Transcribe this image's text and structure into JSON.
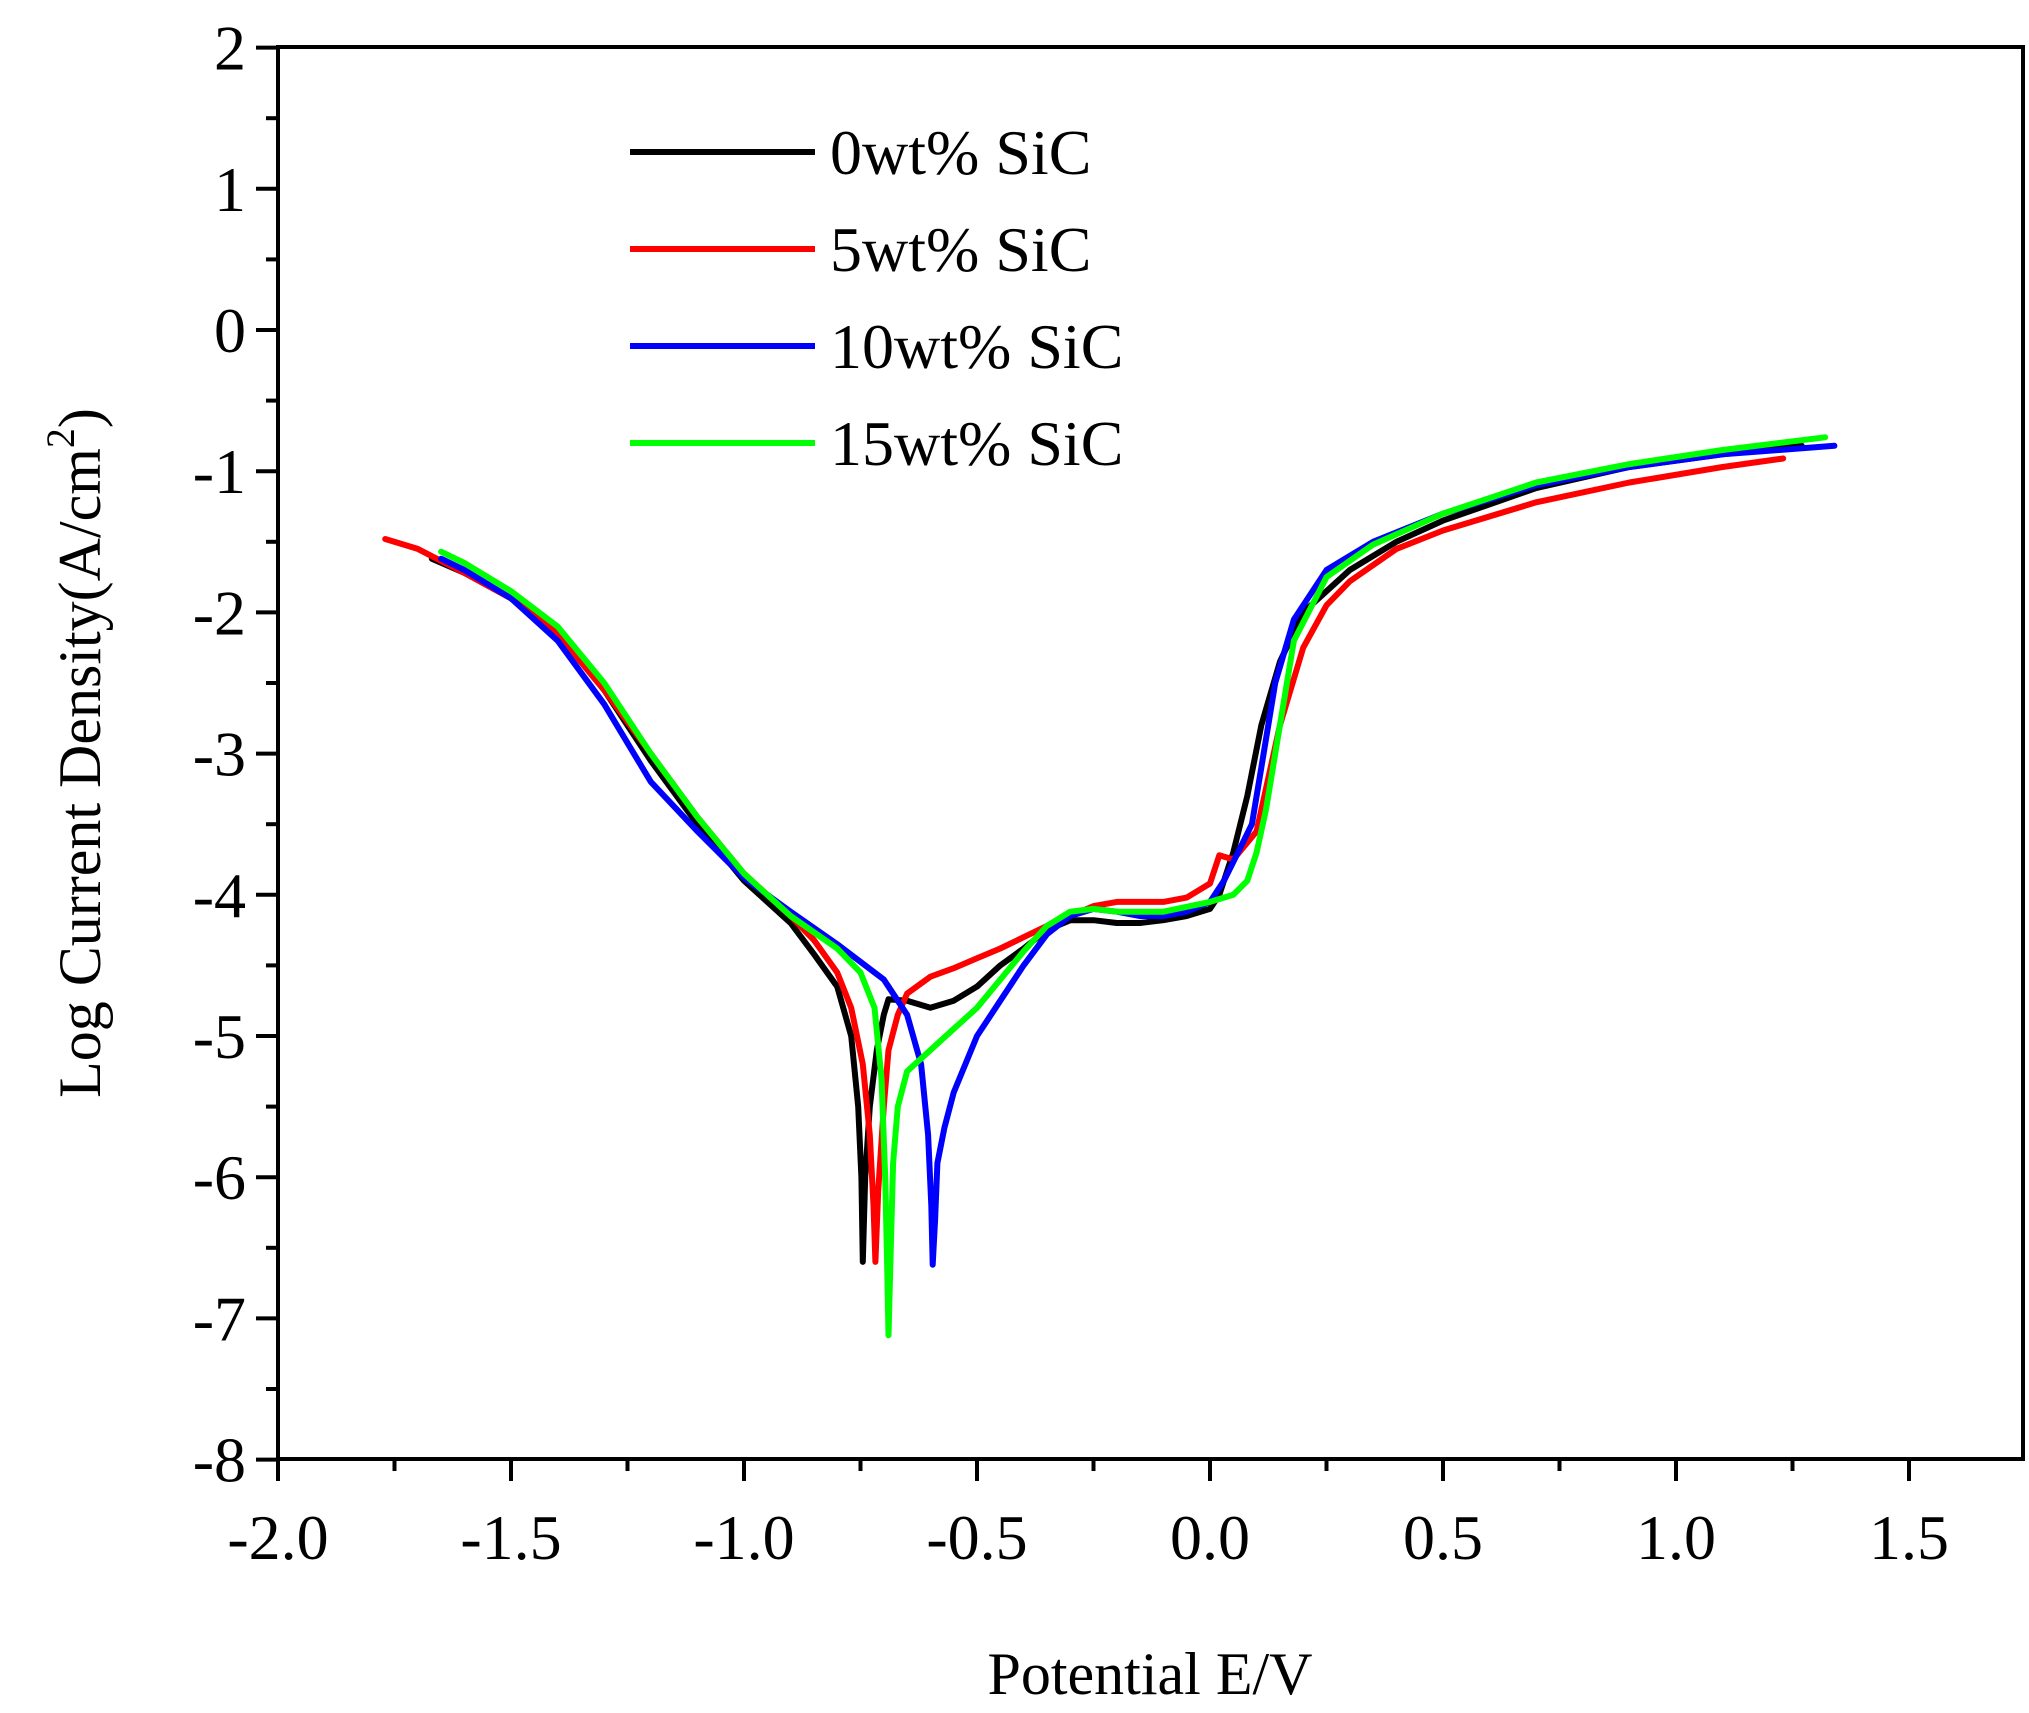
{
  "chart_data": {
    "type": "line",
    "title": "",
    "xlabel": "Potential E/V",
    "ylabel": "Log Current Density(A/cm",
    "ylabel_superscript": "2",
    "ylabel_close": ")",
    "xlim": [
      -2.0,
      1.75
    ],
    "ylim": [
      -8,
      2
    ],
    "x_ticks": [
      -2.0,
      -1.5,
      -1.0,
      -0.5,
      0.0,
      0.5,
      1.0,
      1.5
    ],
    "x_tick_labels": [
      "-2.0",
      "-1.5",
      "-1.0",
      "-0.5",
      "0.0",
      "0.5",
      "1.0",
      "1.5"
    ],
    "y_ticks": [
      2,
      1,
      0,
      -1,
      -2,
      -3,
      -4,
      -5,
      -6,
      -7,
      -8
    ],
    "y_tick_labels": [
      "2",
      "1",
      "0",
      "-1",
      "-2",
      "-3",
      "-4",
      "-5",
      "-6",
      "-7",
      "-8"
    ],
    "grid": false,
    "legend_position": "top-left",
    "series": [
      {
        "name": "0wt% SiC",
        "color": "#000000",
        "points": [
          [
            -1.67,
            -1.62
          ],
          [
            -1.6,
            -1.72
          ],
          [
            -1.5,
            -1.9
          ],
          [
            -1.4,
            -2.15
          ],
          [
            -1.3,
            -2.55
          ],
          [
            -1.2,
            -3.05
          ],
          [
            -1.1,
            -3.5
          ],
          [
            -1.0,
            -3.9
          ],
          [
            -0.9,
            -4.2
          ],
          [
            -0.85,
            -4.42
          ],
          [
            -0.8,
            -4.65
          ],
          [
            -0.77,
            -5.0
          ],
          [
            -0.755,
            -5.5
          ],
          [
            -0.748,
            -6.0
          ],
          [
            -0.745,
            -6.6
          ],
          [
            -0.74,
            -6.0
          ],
          [
            -0.73,
            -5.5
          ],
          [
            -0.715,
            -5.1
          ],
          [
            -0.7,
            -4.85
          ],
          [
            -0.69,
            -4.74
          ],
          [
            -0.65,
            -4.75
          ],
          [
            -0.6,
            -4.8
          ],
          [
            -0.55,
            -4.75
          ],
          [
            -0.5,
            -4.65
          ],
          [
            -0.45,
            -4.5
          ],
          [
            -0.4,
            -4.38
          ],
          [
            -0.35,
            -4.25
          ],
          [
            -0.3,
            -4.18
          ],
          [
            -0.25,
            -4.18
          ],
          [
            -0.2,
            -4.2
          ],
          [
            -0.15,
            -4.2
          ],
          [
            -0.1,
            -4.18
          ],
          [
            -0.05,
            -4.15
          ],
          [
            0.0,
            -4.1
          ],
          [
            0.02,
            -4.0
          ],
          [
            0.05,
            -3.7
          ],
          [
            0.08,
            -3.3
          ],
          [
            0.11,
            -2.8
          ],
          [
            0.15,
            -2.35
          ],
          [
            0.2,
            -2.0
          ],
          [
            0.3,
            -1.7
          ],
          [
            0.4,
            -1.5
          ],
          [
            0.5,
            -1.35
          ],
          [
            0.7,
            -1.12
          ],
          [
            0.9,
            -0.97
          ],
          [
            1.1,
            -0.88
          ],
          [
            1.27,
            -0.82
          ]
        ]
      },
      {
        "name": "5wt% SiC",
        "color": "#ff0000",
        "points": [
          [
            -1.77,
            -1.48
          ],
          [
            -1.7,
            -1.55
          ],
          [
            -1.6,
            -1.72
          ],
          [
            -1.5,
            -1.9
          ],
          [
            -1.4,
            -2.15
          ],
          [
            -1.3,
            -2.55
          ],
          [
            -1.2,
            -3.0
          ],
          [
            -1.1,
            -3.45
          ],
          [
            -1.0,
            -3.85
          ],
          [
            -0.9,
            -4.15
          ],
          [
            -0.85,
            -4.32
          ],
          [
            -0.8,
            -4.55
          ],
          [
            -0.77,
            -4.8
          ],
          [
            -0.745,
            -5.2
          ],
          [
            -0.73,
            -5.7
          ],
          [
            -0.722,
            -6.2
          ],
          [
            -0.718,
            -6.6
          ],
          [
            -0.712,
            -6.1
          ],
          [
            -0.7,
            -5.5
          ],
          [
            -0.69,
            -5.1
          ],
          [
            -0.67,
            -4.85
          ],
          [
            -0.65,
            -4.7
          ],
          [
            -0.6,
            -4.58
          ],
          [
            -0.55,
            -4.52
          ],
          [
            -0.5,
            -4.45
          ],
          [
            -0.45,
            -4.38
          ],
          [
            -0.4,
            -4.3
          ],
          [
            -0.35,
            -4.22
          ],
          [
            -0.3,
            -4.15
          ],
          [
            -0.25,
            -4.08
          ],
          [
            -0.2,
            -4.05
          ],
          [
            -0.1,
            -4.05
          ],
          [
            -0.05,
            -4.02
          ],
          [
            0.0,
            -3.92
          ],
          [
            0.02,
            -3.72
          ],
          [
            0.05,
            -3.75
          ],
          [
            0.1,
            -3.55
          ],
          [
            0.15,
            -2.8
          ],
          [
            0.2,
            -2.25
          ],
          [
            0.25,
            -1.95
          ],
          [
            0.3,
            -1.78
          ],
          [
            0.4,
            -1.55
          ],
          [
            0.5,
            -1.42
          ],
          [
            0.7,
            -1.22
          ],
          [
            0.9,
            -1.08
          ],
          [
            1.1,
            -0.97
          ],
          [
            1.23,
            -0.91
          ]
        ]
      },
      {
        "name": "10wt% SiC",
        "color": "#0000ff",
        "points": [
          [
            -1.65,
            -1.62
          ],
          [
            -1.6,
            -1.7
          ],
          [
            -1.5,
            -1.9
          ],
          [
            -1.4,
            -2.2
          ],
          [
            -1.3,
            -2.65
          ],
          [
            -1.2,
            -3.2
          ],
          [
            -1.1,
            -3.55
          ],
          [
            -1.0,
            -3.88
          ],
          [
            -0.9,
            -4.12
          ],
          [
            -0.8,
            -4.35
          ],
          [
            -0.7,
            -4.6
          ],
          [
            -0.65,
            -4.85
          ],
          [
            -0.62,
            -5.2
          ],
          [
            -0.605,
            -5.7
          ],
          [
            -0.598,
            -6.2
          ],
          [
            -0.595,
            -6.62
          ],
          [
            -0.59,
            -6.3
          ],
          [
            -0.585,
            -5.9
          ],
          [
            -0.57,
            -5.65
          ],
          [
            -0.55,
            -5.4
          ],
          [
            -0.5,
            -5.0
          ],
          [
            -0.45,
            -4.75
          ],
          [
            -0.4,
            -4.5
          ],
          [
            -0.35,
            -4.28
          ],
          [
            -0.3,
            -4.15
          ],
          [
            -0.25,
            -4.1
          ],
          [
            -0.2,
            -4.12
          ],
          [
            -0.15,
            -4.15
          ],
          [
            -0.1,
            -4.15
          ],
          [
            -0.05,
            -4.12
          ],
          [
            0.0,
            -4.05
          ],
          [
            0.03,
            -3.9
          ],
          [
            0.06,
            -3.7
          ],
          [
            0.09,
            -3.5
          ],
          [
            0.11,
            -3.1
          ],
          [
            0.14,
            -2.5
          ],
          [
            0.18,
            -2.05
          ],
          [
            0.25,
            -1.7
          ],
          [
            0.35,
            -1.5
          ],
          [
            0.5,
            -1.3
          ],
          [
            0.7,
            -1.1
          ],
          [
            0.9,
            -0.97
          ],
          [
            1.1,
            -0.88
          ],
          [
            1.34,
            -0.82
          ]
        ]
      },
      {
        "name": "15wt% SiC",
        "color": "#00ff00",
        "points": [
          [
            -1.65,
            -1.57
          ],
          [
            -1.6,
            -1.65
          ],
          [
            -1.5,
            -1.85
          ],
          [
            -1.4,
            -2.1
          ],
          [
            -1.3,
            -2.5
          ],
          [
            -1.2,
            -3.0
          ],
          [
            -1.1,
            -3.45
          ],
          [
            -1.0,
            -3.85
          ],
          [
            -0.9,
            -4.15
          ],
          [
            -0.8,
            -4.38
          ],
          [
            -0.75,
            -4.55
          ],
          [
            -0.72,
            -4.8
          ],
          [
            -0.705,
            -5.3
          ],
          [
            -0.697,
            -6.0
          ],
          [
            -0.693,
            -6.6
          ],
          [
            -0.69,
            -7.12
          ],
          [
            -0.685,
            -6.5
          ],
          [
            -0.68,
            -5.9
          ],
          [
            -0.67,
            -5.5
          ],
          [
            -0.65,
            -5.25
          ],
          [
            -0.6,
            -5.1
          ],
          [
            -0.55,
            -4.95
          ],
          [
            -0.5,
            -4.8
          ],
          [
            -0.45,
            -4.6
          ],
          [
            -0.4,
            -4.4
          ],
          [
            -0.35,
            -4.22
          ],
          [
            -0.3,
            -4.12
          ],
          [
            -0.25,
            -4.1
          ],
          [
            -0.2,
            -4.12
          ],
          [
            -0.1,
            -4.12
          ],
          [
            0.0,
            -4.05
          ],
          [
            0.05,
            -4.0
          ],
          [
            0.08,
            -3.9
          ],
          [
            0.1,
            -3.7
          ],
          [
            0.12,
            -3.4
          ],
          [
            0.15,
            -2.8
          ],
          [
            0.18,
            -2.2
          ],
          [
            0.25,
            -1.75
          ],
          [
            0.35,
            -1.52
          ],
          [
            0.5,
            -1.3
          ],
          [
            0.7,
            -1.08
          ],
          [
            0.9,
            -0.95
          ],
          [
            1.1,
            -0.85
          ],
          [
            1.32,
            -0.76
          ]
        ]
      }
    ]
  }
}
